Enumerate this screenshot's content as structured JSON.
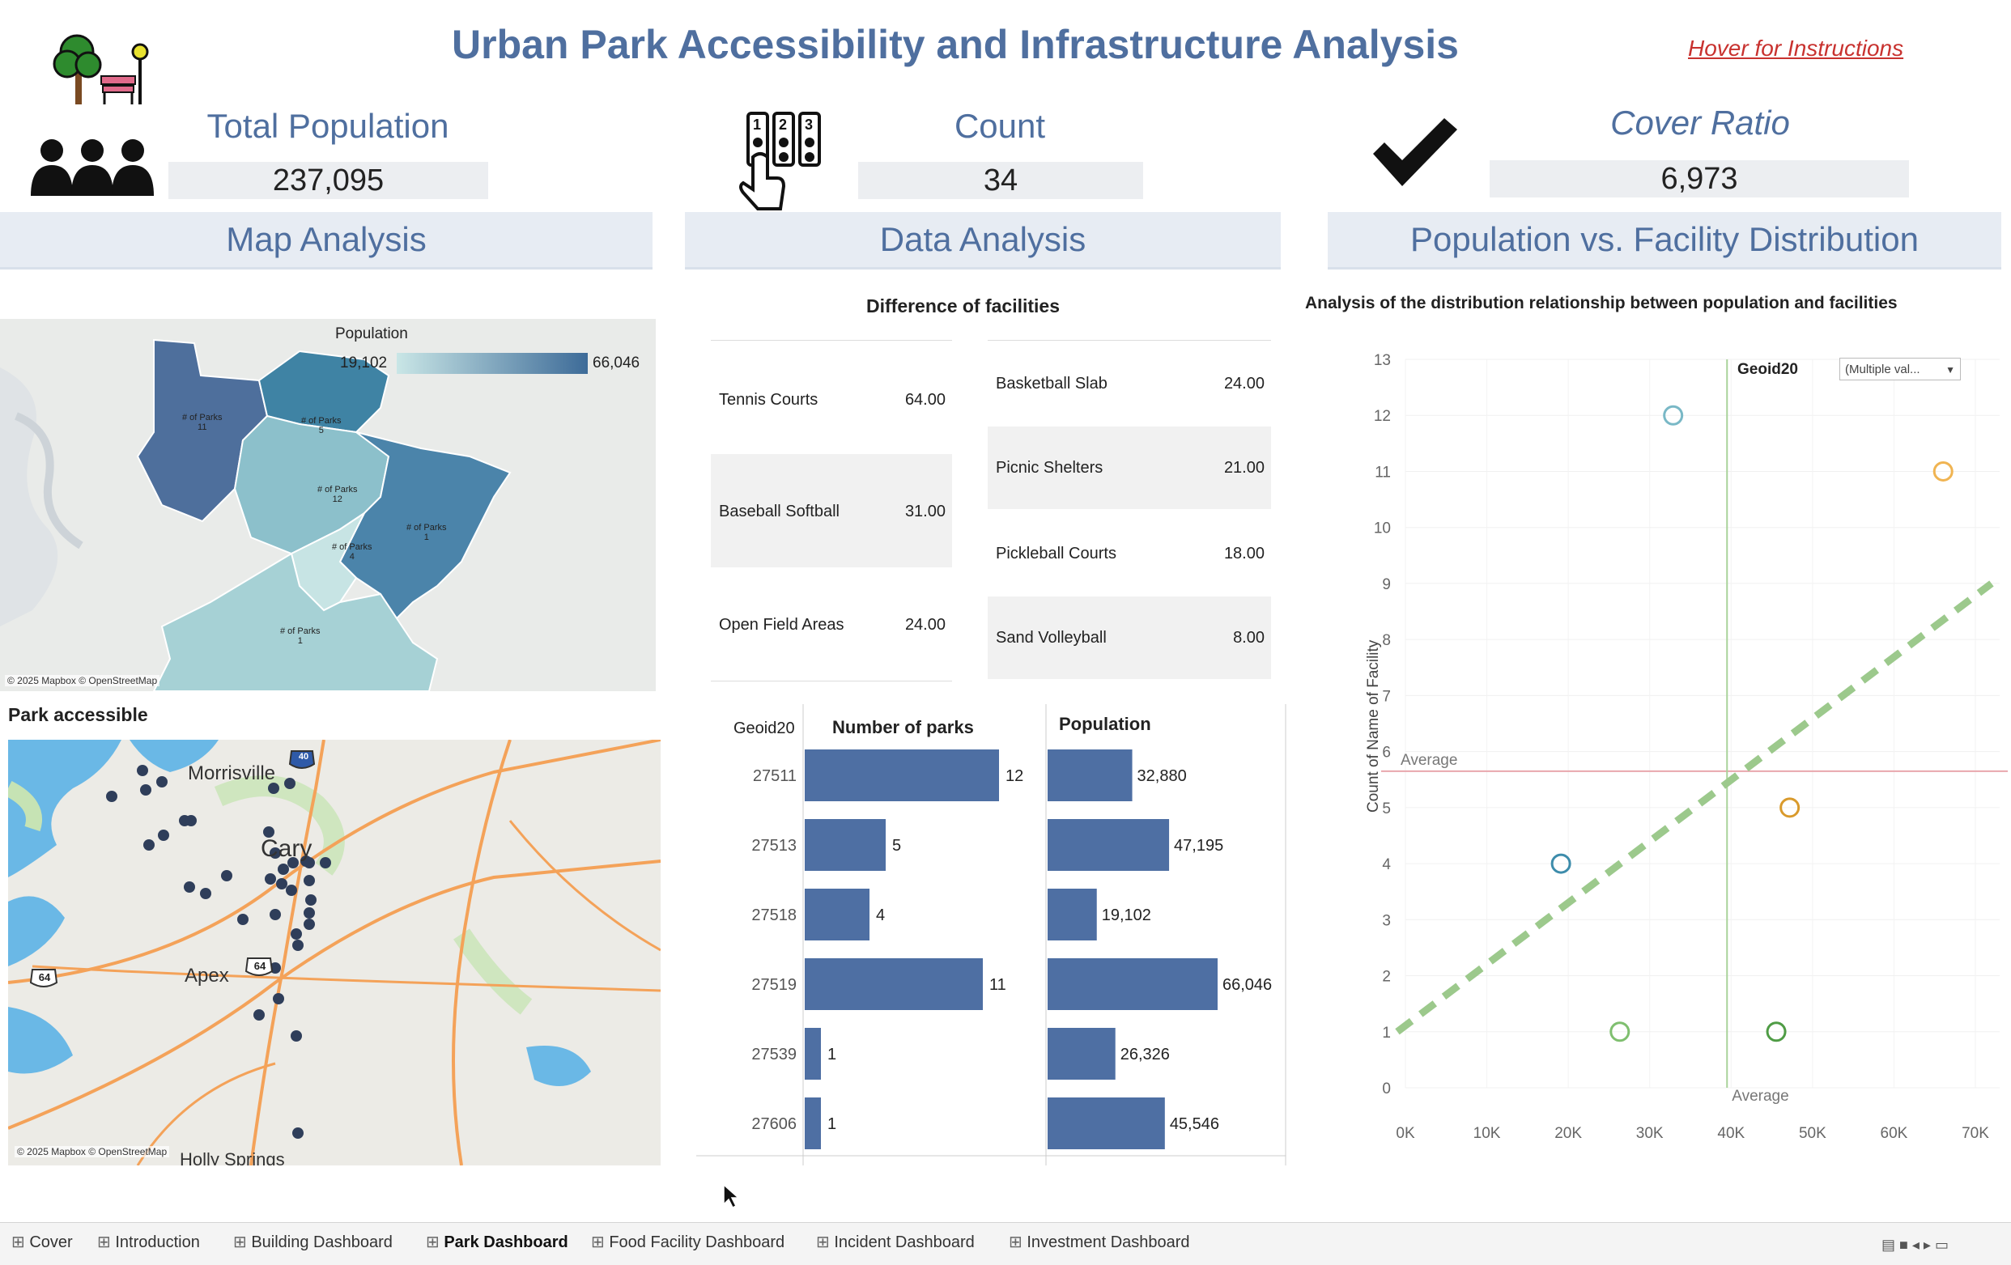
{
  "header": {
    "title": "Urban Park Accessibility and Infrastructure Analysis",
    "hover": "Hover for Instructions"
  },
  "kpis": [
    {
      "label": "Total Population",
      "value": "237,095"
    },
    {
      "label": "Count",
      "value": "34"
    },
    {
      "label": "Cover Ratio",
      "value": "6,973"
    }
  ],
  "panels": {
    "map": "Map Analysis",
    "data": "Data Analysis",
    "dist": "Population vs. Facility Distribution"
  },
  "choropleth": {
    "legend_title": "Population",
    "legend_min": "19,102",
    "legend_max": "66,046",
    "region_label": "# of Parks",
    "parks": [
      "11",
      "5",
      "12",
      "1",
      "4",
      "1"
    ],
    "credit": "© 2025 Mapbox © OpenStreetMap"
  },
  "park_map": {
    "title": "Park accessible",
    "places": [
      "Morrisville",
      "Cary",
      "Apex",
      "Holly Springs"
    ],
    "shields": [
      "40",
      "64",
      "64"
    ],
    "credit": "© 2025 Mapbox © OpenStreetMap"
  },
  "facilities": {
    "title": "Difference of facilities",
    "left": [
      {
        "name": "Tennis Courts",
        "value": "64.00"
      },
      {
        "name": "Baseball Softball",
        "value": "31.00"
      },
      {
        "name": "Open Field Areas",
        "value": "24.00"
      }
    ],
    "right": [
      {
        "name": "Basketball Slab",
        "value": "24.00"
      },
      {
        "name": "Picnic Shelters",
        "value": "21.00"
      },
      {
        "name": "Pickleball Courts",
        "value": "18.00"
      },
      {
        "name": "Sand Volleyball",
        "value": "8.00"
      }
    ]
  },
  "bar_table": {
    "col_geo": "Geoid20",
    "col_parks": "Number of parks",
    "col_pop": "Population",
    "rows": [
      {
        "geo": "27511",
        "parks": 12,
        "pop": 32880,
        "pop_label": "32,880"
      },
      {
        "geo": "27513",
        "parks": 5,
        "pop": 47195,
        "pop_label": "47,195"
      },
      {
        "geo": "27518",
        "parks": 4,
        "pop": 19102,
        "pop_label": "19,102"
      },
      {
        "geo": "27519",
        "parks": 11,
        "pop": 66046,
        "pop_label": "66,046"
      },
      {
        "geo": "27539",
        "parks": 1,
        "pop": 26326,
        "pop_label": "26,326"
      },
      {
        "geo": "27606",
        "parks": 1,
        "pop": 45546,
        "pop_label": "45,546"
      }
    ],
    "colors": {
      "bar": "#4e6fa3"
    }
  },
  "chart_data": {
    "type": "scatter",
    "title": "Analysis of the distribution relationship between population and facilities",
    "xlabel": "Population",
    "ylabel": "Count of Name of Facility",
    "xlim": [
      0,
      70000
    ],
    "ylim": [
      0,
      13
    ],
    "x_ticks": [
      "0K",
      "10K",
      "20K",
      "30K",
      "40K",
      "50K",
      "60K",
      "70K"
    ],
    "y_ticks": [
      "0",
      "1",
      "2",
      "3",
      "4",
      "5",
      "6",
      "7",
      "8",
      "9",
      "10",
      "11",
      "12",
      "13"
    ],
    "filter_label": "Geoid20",
    "filter_value": "(Multiple val...",
    "avg_label_x": "Average",
    "avg_label_y": "Average",
    "avg_x": 39500,
    "avg_y": 5.65,
    "trend": [
      [
        0,
        1.0
      ],
      [
        69000,
        9.0
      ]
    ],
    "points": [
      {
        "x": 32880,
        "y": 12,
        "color": "#79b8c6"
      },
      {
        "x": 66046,
        "y": 11,
        "color": "#f0b452"
      },
      {
        "x": 47195,
        "y": 5,
        "color": "#d99a2c"
      },
      {
        "x": 19102,
        "y": 4,
        "color": "#3d8cab"
      },
      {
        "x": 26326,
        "y": 1,
        "color": "#7fbf6f"
      },
      {
        "x": 45546,
        "y": 1,
        "color": "#4f9c45"
      }
    ]
  },
  "tabs": [
    "Cover",
    "Introduction",
    "Building Dashboard",
    "Park Dashboard",
    "Food Facility Dashboard",
    "Incident Dashboard",
    "Investment Dashboard"
  ]
}
